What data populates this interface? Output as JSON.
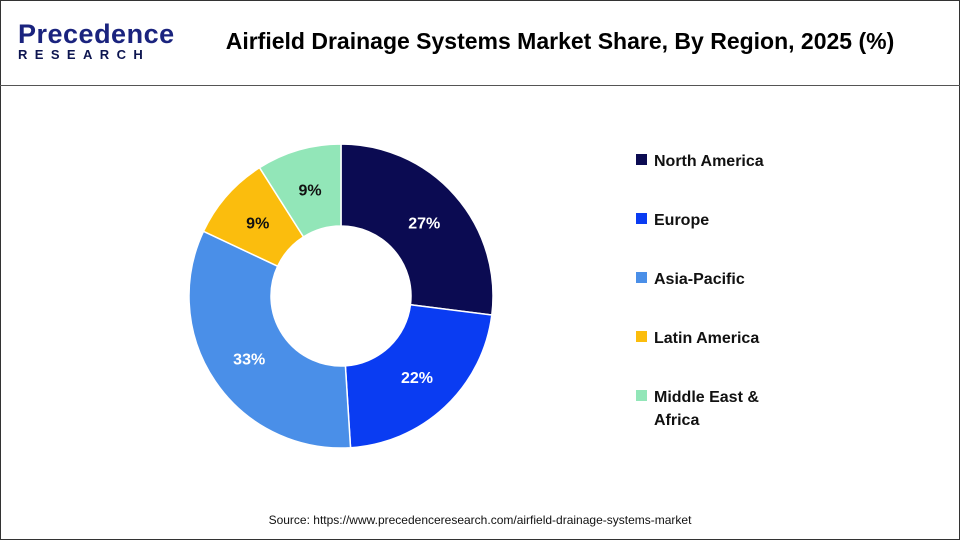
{
  "logo": {
    "line1": "Precedence",
    "line2": "RESEARCH"
  },
  "title": "Airfield Drainage Systems Market Share, By Region, 2025 (%)",
  "source": "Source: https://www.precedenceresearch.com/airfield-drainage-systems-market",
  "chart_data": {
    "type": "pie",
    "variant": "donut",
    "title": "Airfield Drainage Systems Market Share, By Region, 2025 (%)",
    "categories": [
      "North America",
      "Europe",
      "Asia-Pacific",
      "Latin America",
      "Middle East & Africa"
    ],
    "values": [
      27,
      22,
      33,
      9,
      9
    ],
    "labels": [
      "27%",
      "22%",
      "33%",
      "9%",
      "9%"
    ],
    "colors": [
      "#0b0b52",
      "#0a3cf2",
      "#4a8fe8",
      "#fbbd0d",
      "#92e6b8"
    ],
    "legend_position": "right"
  }
}
